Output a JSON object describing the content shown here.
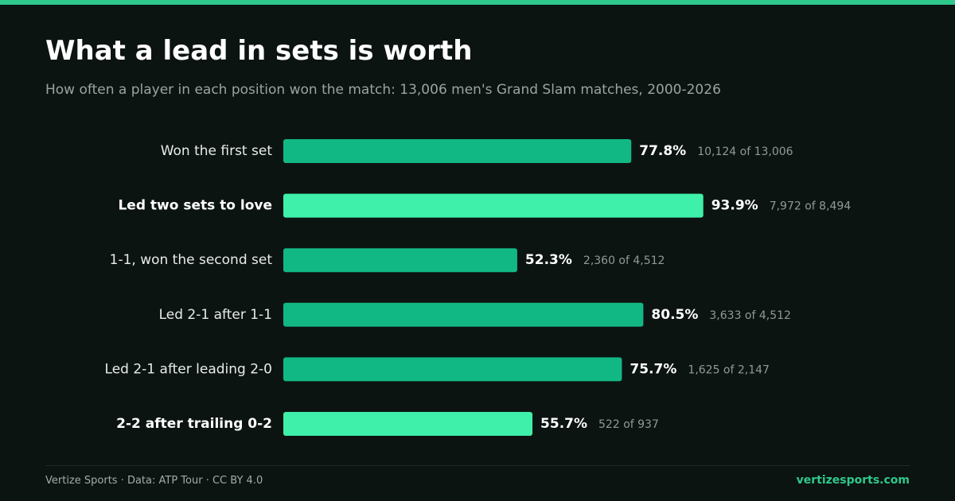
{
  "header": {
    "title": "What a lead in sets is worth",
    "subtitle": "How often a player in each position won the match: 13,006 men's Grand Slam matches, 2000-2026"
  },
  "colors": {
    "accent": "#2fc88d",
    "bar_normal": "#11b884",
    "bar_highlight": "#3ef0aa",
    "background": "#0c1412"
  },
  "chart_data": {
    "type": "bar",
    "orientation": "horizontal",
    "title": "What a lead in sets is worth",
    "subtitle": "How often a player in each position won the match: 13,006 men's Grand Slam matches, 2000-2026",
    "xlabel": "",
    "ylabel": "",
    "xlim": [
      0,
      100
    ],
    "grid": false,
    "categories": [
      "Won the first set",
      "Led two sets to love",
      "1-1, won the second set",
      "Led 2-1 after 1-1",
      "Led 2-1 after leading 2-0",
      "2-2 after trailing 0-2"
    ],
    "values": [
      77.8,
      93.9,
      52.3,
      80.5,
      75.7,
      55.7
    ],
    "value_labels": [
      "77.8%",
      "93.9%",
      "52.3%",
      "80.5%",
      "75.7%",
      "55.7%"
    ],
    "count_labels": [
      "10,124 of 13,006",
      "7,972 of 8,494",
      "2,360 of 4,512",
      "3,633 of 4,512",
      "1,625 of 2,147",
      "522 of 937"
    ],
    "highlighted": [
      false,
      true,
      false,
      false,
      false,
      true
    ]
  },
  "footer": {
    "credit": "Vertize Sports · Data: ATP Tour · CC BY 4.0",
    "site": "vertizesports.com"
  }
}
